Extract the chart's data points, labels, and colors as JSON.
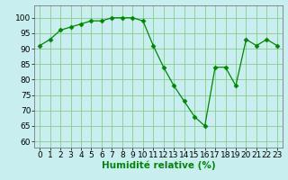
{
  "x": [
    0,
    1,
    2,
    3,
    4,
    5,
    6,
    7,
    8,
    9,
    10,
    11,
    12,
    13,
    14,
    15,
    16,
    17,
    18,
    19,
    20,
    21,
    22,
    23
  ],
  "y": [
    91,
    93,
    96,
    97,
    98,
    99,
    99,
    100,
    100,
    100,
    99,
    91,
    84,
    78,
    73,
    68,
    65,
    84,
    84,
    78,
    93,
    91,
    93,
    91
  ],
  "line_color": "#008800",
  "marker": "D",
  "marker_size": 2.5,
  "bg_color": "#c8eef0",
  "grid_color": "#88cc88",
  "xlabel": "Humidité relative (%)",
  "xlabel_color": "#008800",
  "ylim": [
    58,
    104
  ],
  "yticks": [
    60,
    65,
    70,
    75,
    80,
    85,
    90,
    95,
    100
  ],
  "xlim": [
    -0.5,
    23.5
  ],
  "xticks": [
    0,
    1,
    2,
    3,
    4,
    5,
    6,
    7,
    8,
    9,
    10,
    11,
    12,
    13,
    14,
    15,
    16,
    17,
    18,
    19,
    20,
    21,
    22,
    23
  ],
  "tick_fontsize": 6.5,
  "xlabel_fontsize": 7.5
}
